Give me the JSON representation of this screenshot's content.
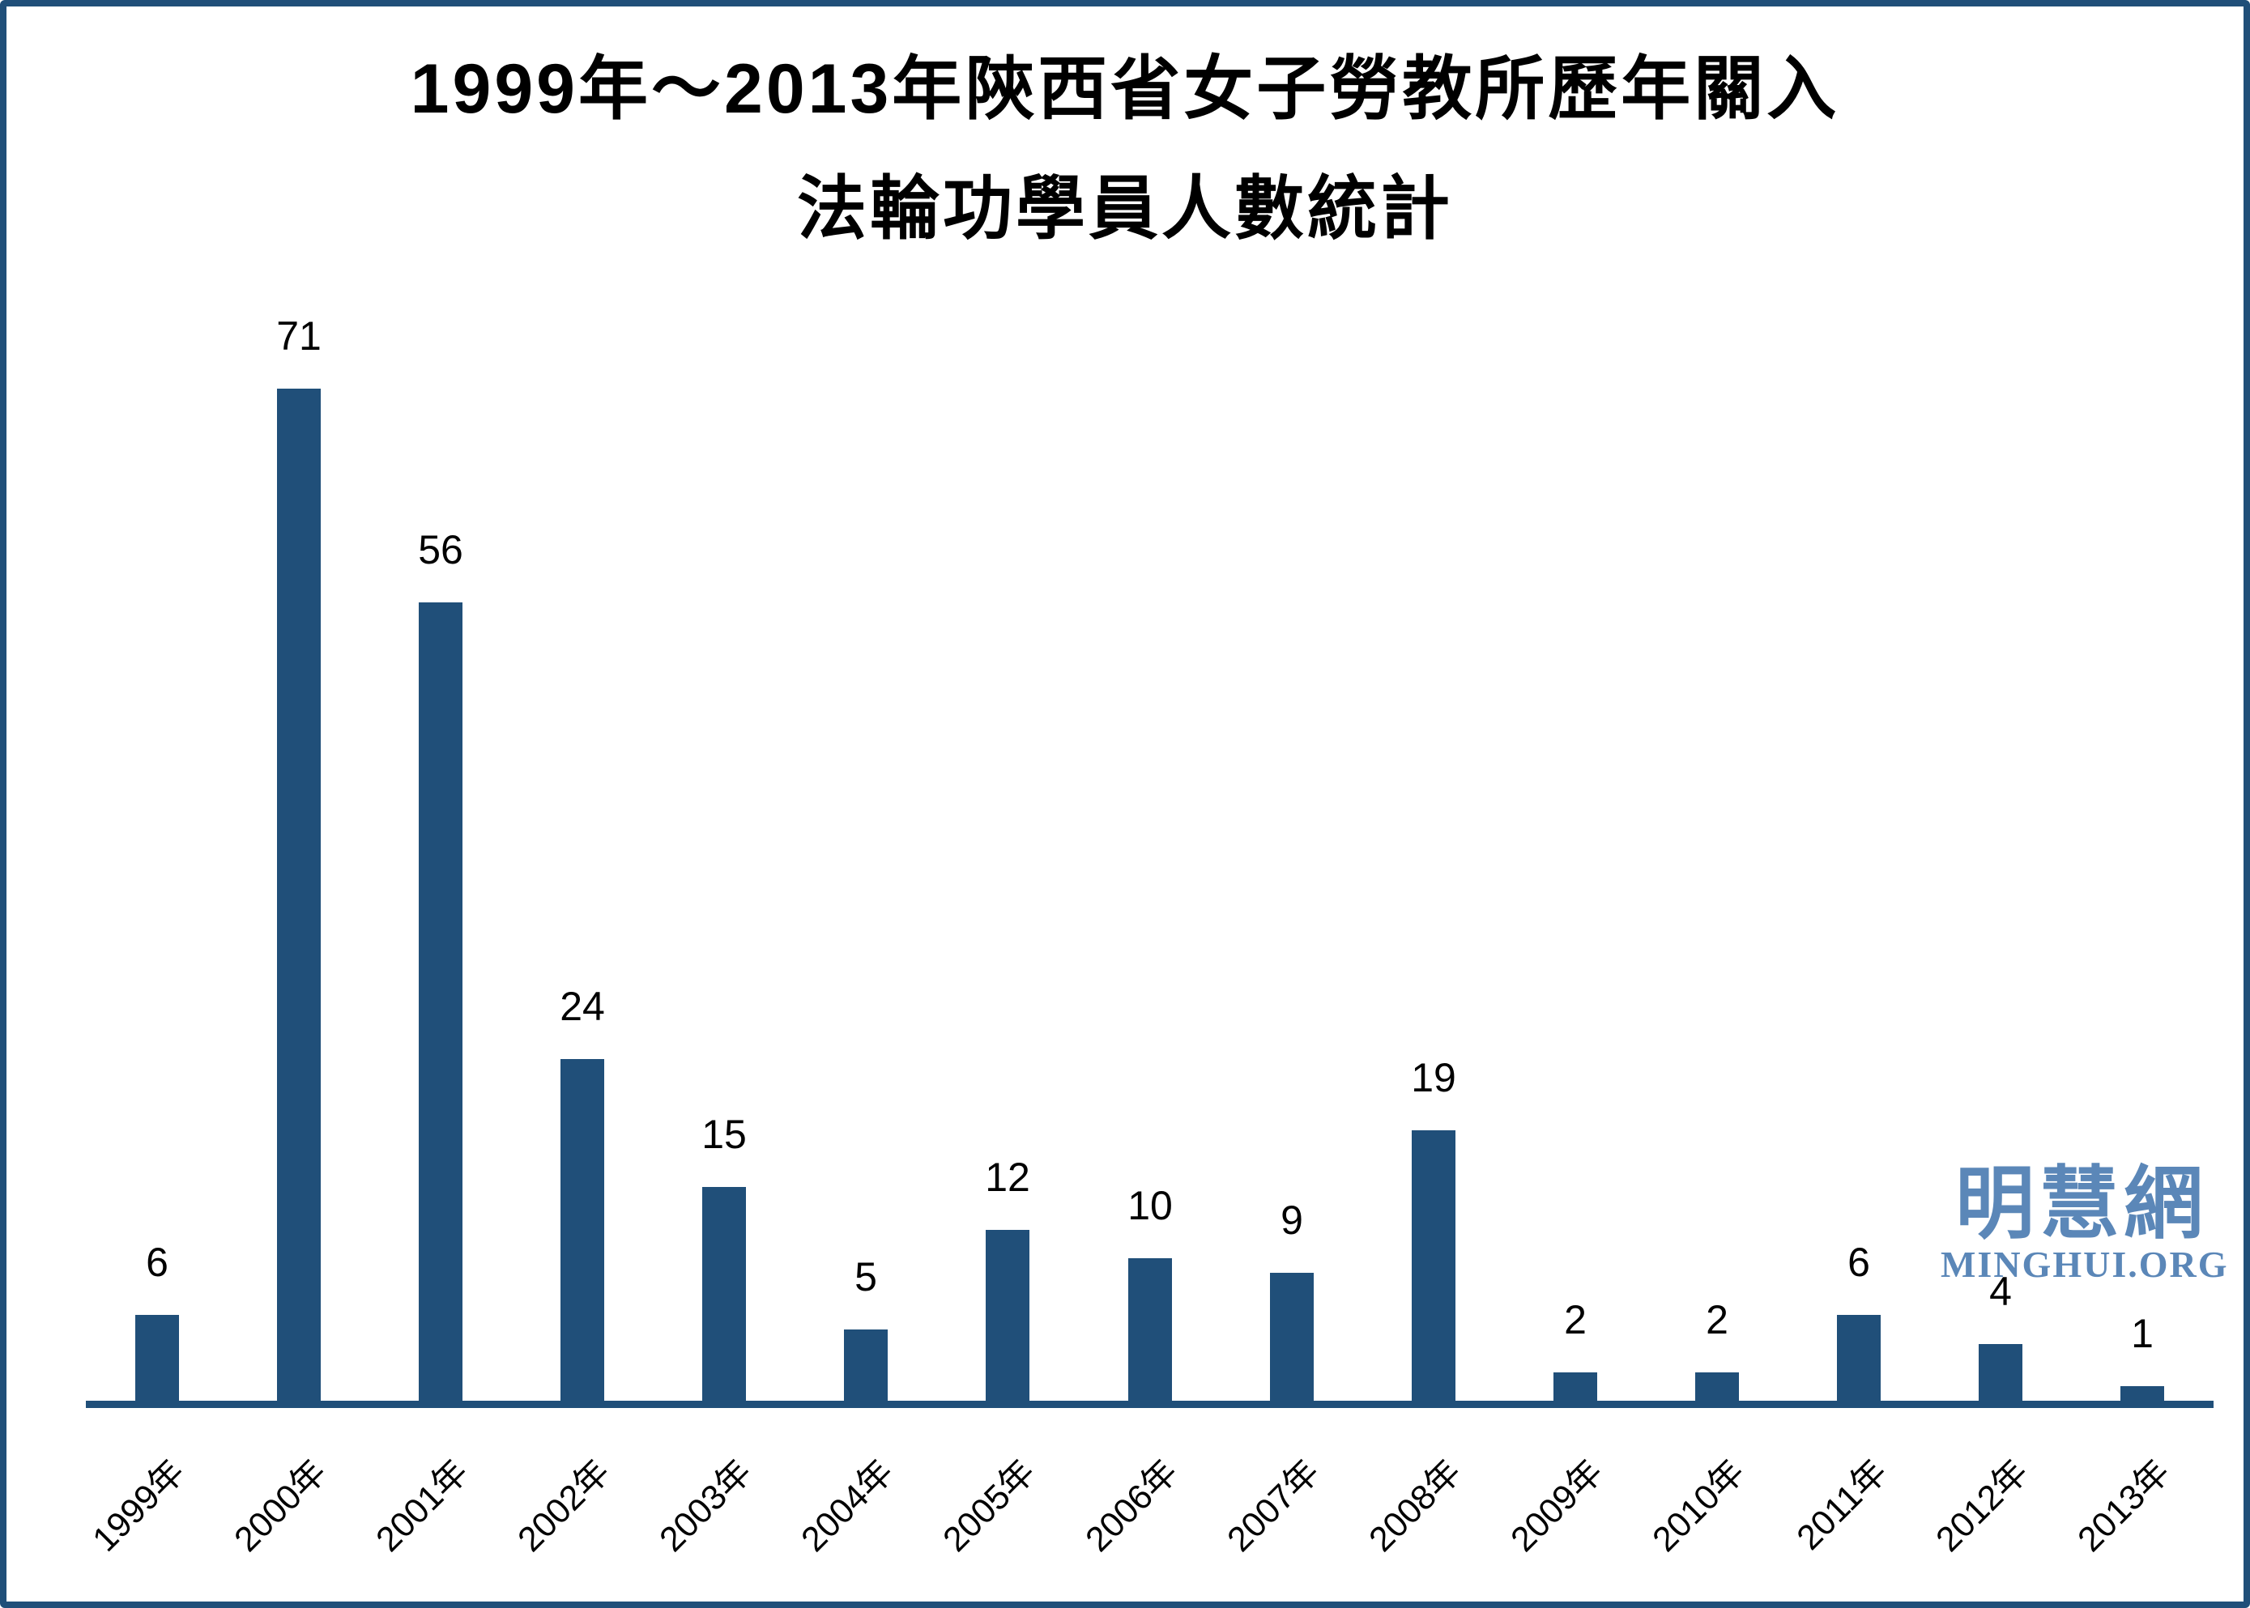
{
  "chart_data": {
    "type": "bar",
    "title_line1": "1999年～2013年陝西省女子勞教所歷年關入",
    "title_line2": "法輪功學員人數統計",
    "categories": [
      "1999年",
      "2000年",
      "2001年",
      "2002年",
      "2003年",
      "2004年",
      "2005年",
      "2006年",
      "2007年",
      "2008年",
      "2009年",
      "2010年",
      "2011年",
      "2012年",
      "2013年"
    ],
    "values": [
      6,
      71,
      56,
      24,
      15,
      5,
      12,
      10,
      9,
      19,
      2,
      2,
      6,
      4,
      1
    ],
    "xlabel": "",
    "ylabel": "",
    "ylim": [
      0,
      75
    ],
    "grid": false,
    "legend": "none",
    "data_labels": true,
    "bar_color": "#204F79",
    "axis_color": "#204F79",
    "label_color": "#000000"
  },
  "watermark": {
    "logo_cjk": "明慧網",
    "logo_latin": "MINGHUI.ORG",
    "color": "#5B87B8"
  },
  "frame": {
    "border_color": "#204F79",
    "background": "#FFFFFF"
  }
}
